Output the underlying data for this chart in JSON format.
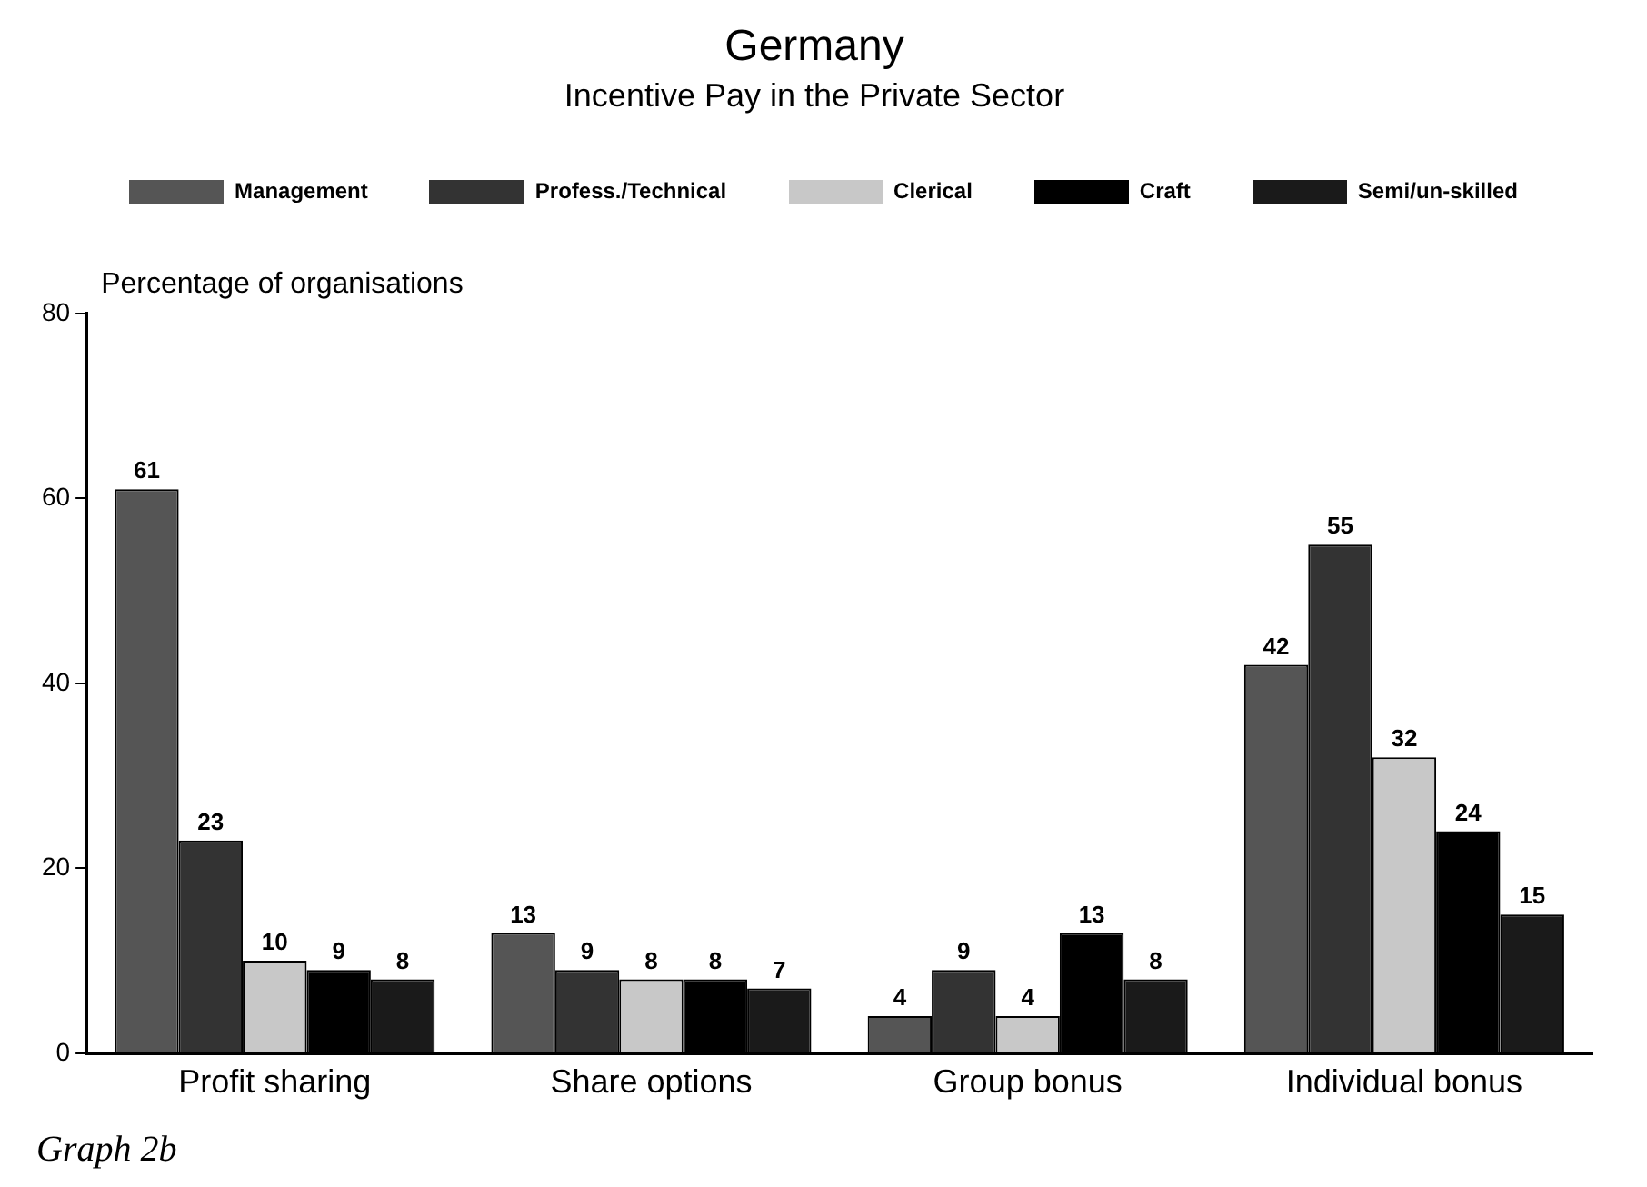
{
  "chart_data": {
    "type": "bar",
    "title": "Germany",
    "subtitle": "Incentive Pay in the Private Sector",
    "ylabel": "Percentage of organisations",
    "annotations": [
      "Graph 2b"
    ],
    "categories": [
      "Profit sharing",
      "Share options",
      "Group bonus",
      "Individual bonus"
    ],
    "series": [
      {
        "name": "Management",
        "color": "#555555",
        "values": [
          61,
          13,
          4,
          42
        ]
      },
      {
        "name": "Profess./Technical",
        "color": "#333333",
        "values": [
          23,
          9,
          9,
          55
        ]
      },
      {
        "name": "Clerical",
        "color": "#c8c8c8",
        "values": [
          10,
          8,
          4,
          32
        ]
      },
      {
        "name": "Craft",
        "color": "#000000",
        "values": [
          9,
          8,
          13,
          24
        ]
      },
      {
        "name": "Semi/un-skilled",
        "color": "#1a1a1a",
        "values": [
          8,
          7,
          8,
          15
        ]
      }
    ],
    "ylim": [
      0,
      80
    ],
    "yticks": [
      0,
      20,
      40,
      60,
      80
    ],
    "grid": false,
    "legend": "top",
    "data_labels": true
  }
}
